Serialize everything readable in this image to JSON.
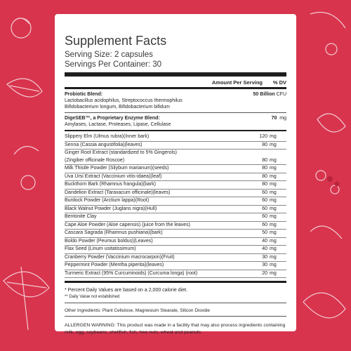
{
  "title": "Supplement Facts",
  "serving_size": "Serving Size: 2 capsules",
  "servings_per_container": "Servings Per Container: 30",
  "header": {
    "amount": "Amount Per Serving",
    "dv": "% DV"
  },
  "probiotic": {
    "label": "Probiotic Blend:",
    "amount": "50 Billion",
    "unit": "CFU",
    "line1": "Lactobacillus acidophilus, Streptococcus thermophilus",
    "line2": "Bifidobacterium longum, Bifidobacterium bifidum"
  },
  "enzyme": {
    "label": "DigeSEB™, a Proprietary Enzyme Blend:",
    "amount": "70",
    "unit": "mg",
    "line1": "Amylases, Lactase, Proteases, Lipase, Cellulase"
  },
  "ingredients": [
    {
      "name": "Slippery Elm (Ulmus rubra)(Inner bark)",
      "value": "120",
      "unit": "mg"
    },
    {
      "name": "Senna (Cassia angustifolia)(leaves)",
      "value": "80",
      "unit": "mg"
    },
    {
      "name": "Ginger Root Extract (standardized to 5% Gingerols)",
      "name2": "(Zingiber officinale Roscoe)",
      "value": "80",
      "unit": "mg"
    },
    {
      "name": "Milk Thistle Powder (Silybum marianum)(seeds)",
      "value": "80",
      "unit": "mg"
    },
    {
      "name": "Uva Ursi Extract (Vaccinium vitis-idaea)(leaf)",
      "value": "80",
      "unit": "mg"
    },
    {
      "name": "Buckthorn Bark (Rhamnus frangula)(bark)",
      "value": "80",
      "unit": "mg"
    },
    {
      "name": "Dandelion Extract (Taraxacum officinale)(leaves)",
      "value": "60",
      "unit": "mg"
    },
    {
      "name": "Burdock Powder (Arctium lappa)(Root)",
      "value": "60",
      "unit": "mg"
    },
    {
      "name": "Black Walnut Powder (Juglans nigra)(Hull)",
      "value": "60",
      "unit": "mg"
    },
    {
      "name": "Bentonite Clay",
      "value": "60",
      "unit": "mg"
    },
    {
      "name": "Cape Aloe Powder (Aloe capensis) (juice from the leaves)",
      "value": "60",
      "unit": "mg"
    },
    {
      "name": "Cascara Sagrada (Rhamnus pushiana)(bark)",
      "value": "50",
      "unit": "mg"
    },
    {
      "name": "Boldo Powder (Peumus boldus)(Leaves)",
      "value": "40",
      "unit": "mg"
    },
    {
      "name": "Flax Seed (Linum usitatissimum)",
      "value": "40",
      "unit": "mg"
    },
    {
      "name": "Cranberry Powder (Vaccinium macrocarpon)(Fruit)",
      "value": "30",
      "unit": "mg"
    },
    {
      "name": "Peppermint Powder (Mentha piperita)(leaves)",
      "value": "30",
      "unit": "mg"
    },
    {
      "name": "Turmeric Extract (95% Curcuminoids) (Curcuma longa) (root)",
      "value": "20",
      "unit": "mg"
    }
  ],
  "footnote1": "* Percent Daily Values are based on a 2,000 calorie diet.",
  "footnote2": "** Daily Value not established",
  "other_ingredients": "Other Ingredients: Plant Cellulose, Magnesium Stearate, Silicon Dioxide",
  "allergen": "ALLERGEN WARNING: This product was made in a facility that may also process ingredients containing milk, egg, soybeans, shellfish, fish, tree nuts, wheat and peanuts.",
  "colors": {
    "background": "#d8344e",
    "card": "#ffffff"
  }
}
